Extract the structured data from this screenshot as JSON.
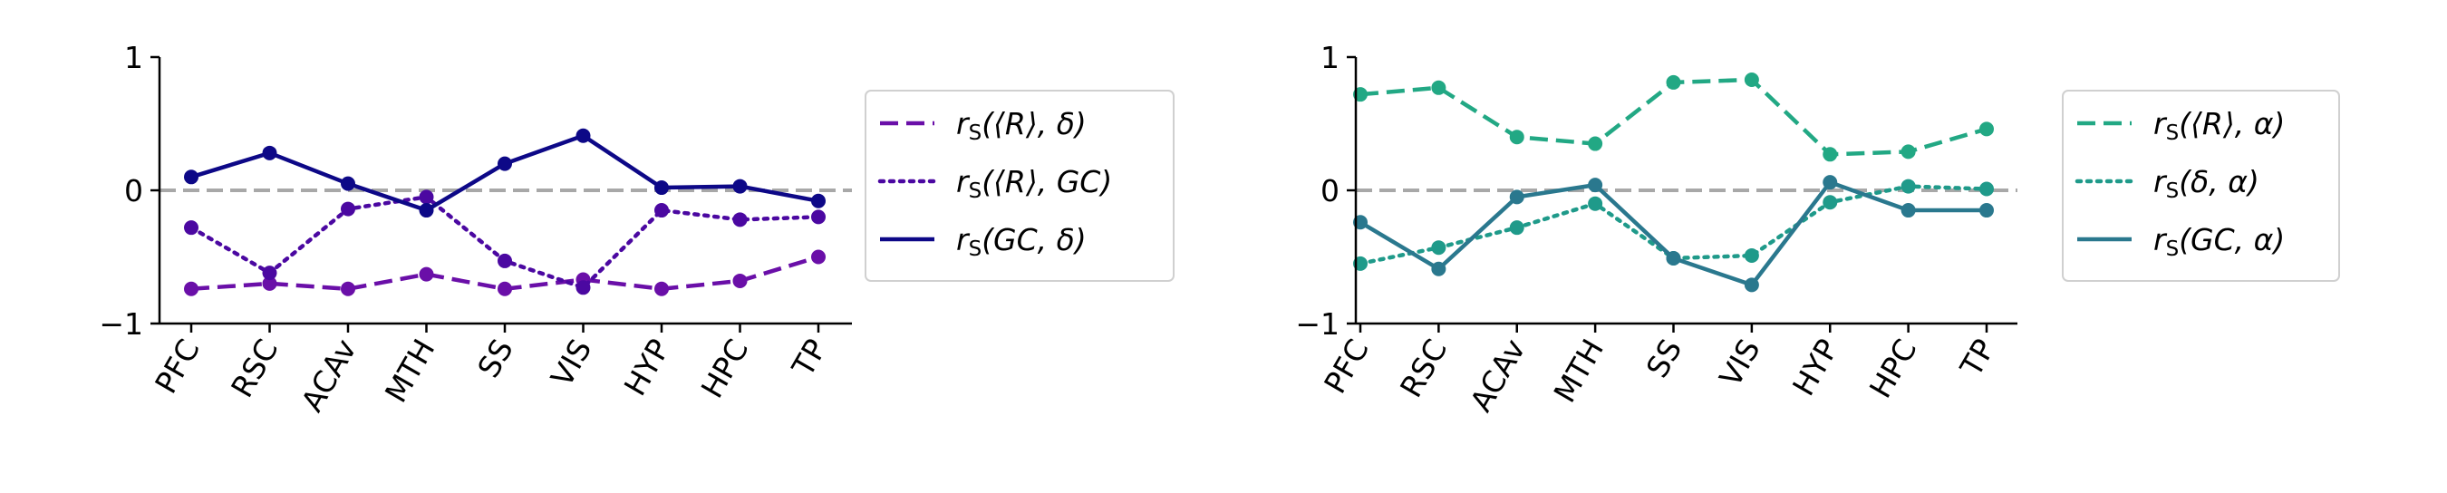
{
  "chart_data": [
    {
      "type": "line",
      "categories": [
        "PFC",
        "RSC",
        "ACAv",
        "MTH",
        "SS",
        "VIS",
        "HYP",
        "HPC",
        "TP"
      ],
      "ylim": [
        -1,
        1
      ],
      "yticks": [
        "−1",
        "0",
        "1"
      ],
      "reference_line": 0,
      "legend_position": "right",
      "series": [
        {
          "name": "r_S(⟨R⟩, δ)",
          "name_parts": [
            "r",
            "S",
            "(⟨R⟩, δ)"
          ],
          "color": "#6a0fa8",
          "style": "dashed",
          "values": [
            -0.74,
            -0.7,
            -0.74,
            -0.63,
            -0.74,
            -0.67,
            -0.74,
            -0.68,
            -0.5
          ]
        },
        {
          "name": "r_S(⟨R⟩, GC)",
          "name_parts": [
            "r",
            "S",
            "(⟨R⟩, GC)"
          ],
          "color": "#4b08a1",
          "style": "dotted",
          "values": [
            -0.28,
            -0.62,
            -0.14,
            -0.05,
            -0.53,
            -0.73,
            -0.15,
            -0.22,
            -0.2
          ]
        },
        {
          "name": "r_S(GC, δ)",
          "name_parts": [
            "r",
            "S",
            "(GC, δ)"
          ],
          "color": "#0d0887",
          "style": "solid",
          "values": [
            0.1,
            0.28,
            0.05,
            -0.15,
            0.2,
            0.41,
            0.02,
            0.03,
            -0.08
          ]
        }
      ]
    },
    {
      "type": "line",
      "categories": [
        "PFC",
        "RSC",
        "ACAv",
        "MTH",
        "SS",
        "VIS",
        "HYP",
        "HPC",
        "TP"
      ],
      "ylim": [
        -1,
        1
      ],
      "yticks": [
        "−1",
        "0",
        "1"
      ],
      "reference_line": 0,
      "legend_position": "right",
      "series": [
        {
          "name": "r_S(⟨R⟩, α)",
          "name_parts": [
            "r",
            "S",
            "(⟨R⟩, α)"
          ],
          "color": "#22a884",
          "style": "dashed",
          "values": [
            0.72,
            0.77,
            0.4,
            0.35,
            0.81,
            0.83,
            0.27,
            0.29,
            0.46
          ]
        },
        {
          "name": "r_S(δ, α)",
          "name_parts": [
            "r",
            "S",
            "(δ, α)"
          ],
          "color": "#1f9a8a",
          "style": "dotted",
          "values": [
            -0.55,
            -0.43,
            -0.28,
            -0.1,
            -0.51,
            -0.49,
            -0.09,
            0.03,
            0.01
          ]
        },
        {
          "name": "r_S(GC, α)",
          "name_parts": [
            "r",
            "S",
            "(GC, α)"
          ],
          "color": "#2a788e",
          "style": "solid",
          "values": [
            -0.24,
            -0.59,
            -0.05,
            0.04,
            -0.51,
            -0.71,
            0.06,
            -0.15,
            -0.15
          ]
        }
      ]
    }
  ]
}
